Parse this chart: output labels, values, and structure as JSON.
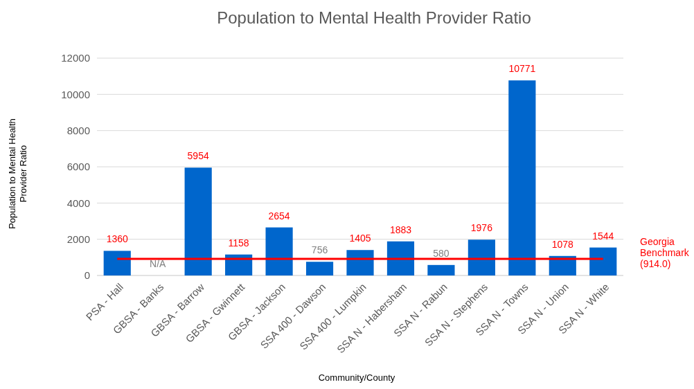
{
  "chart_data": {
    "type": "bar",
    "title": "Population to Mental Health Provider Ratio",
    "xlabel": "Community/County",
    "ylabel": "Population to Mental Health Provider Ratio",
    "categories": [
      "PSA - Hall",
      "GBSA - Banks",
      "GBSA - Barrow",
      "GBSA - Gwinnett",
      "GBSA - Jackson",
      "SSA 400 - Dawson",
      "SSA 400 - Lumpkin",
      "SSA N - Habersham",
      "SSA N - Rabun",
      "SSA N - Stephens",
      "SSA N - Towns",
      "SSA N - Union",
      "SSA N - White"
    ],
    "values": [
      1360,
      null,
      5954,
      1158,
      2654,
      756,
      1405,
      1883,
      580,
      1976,
      10771,
      1078,
      1544
    ],
    "value_labels": [
      "1360",
      "N/A",
      "5954",
      "1158",
      "2654",
      "756",
      "1405",
      "1883",
      "580",
      "1976",
      "10771",
      "1078",
      "1544"
    ],
    "color": "#0066cc",
    "ylim": [
      0,
      12000
    ],
    "yticks": [
      0,
      2000,
      4000,
      6000,
      8000,
      10000,
      12000
    ],
    "grid": "y",
    "ref_lines": [
      {
        "axis": "y",
        "value": 914,
        "label": "Georgia Benchmark (914.0)",
        "color": "#ff0000"
      }
    ]
  }
}
